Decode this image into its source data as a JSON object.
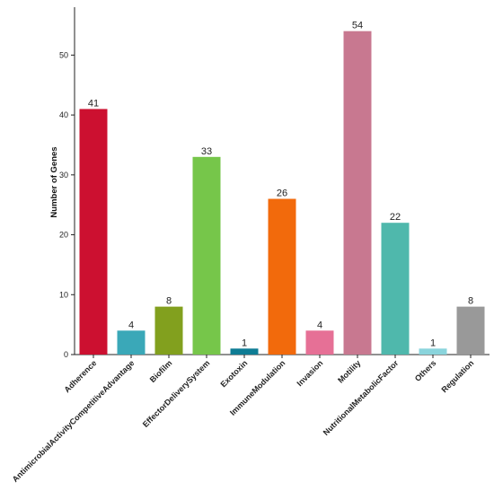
{
  "chart_data": {
    "type": "bar",
    "title": "",
    "xlabel": "",
    "ylabel": "Number of Genes",
    "ylim": [
      0,
      58
    ],
    "yticks": [
      0,
      10,
      20,
      30,
      40,
      50
    ],
    "grid": false,
    "legend": "none",
    "categories": [
      "Adherence",
      "AntimicrobialActivityCompetitiveAdvantage",
      "Biofilm",
      "EffectorDeliverySystem",
      "Exotoxin",
      "ImmuneModulation",
      "Invasion",
      "Motility",
      "NutritionalMetabolicFactor",
      "Others",
      "Regulation"
    ],
    "values": [
      41,
      4,
      8,
      33,
      1,
      26,
      4,
      54,
      22,
      1,
      8
    ],
    "colors": [
      "#cc1030",
      "#3aa8b8",
      "#82a01e",
      "#76c64a",
      "#0e7c94",
      "#f26a0c",
      "#e67096",
      "#c87890",
      "#4fb8ac",
      "#8ad4dc",
      "#999999"
    ]
  }
}
